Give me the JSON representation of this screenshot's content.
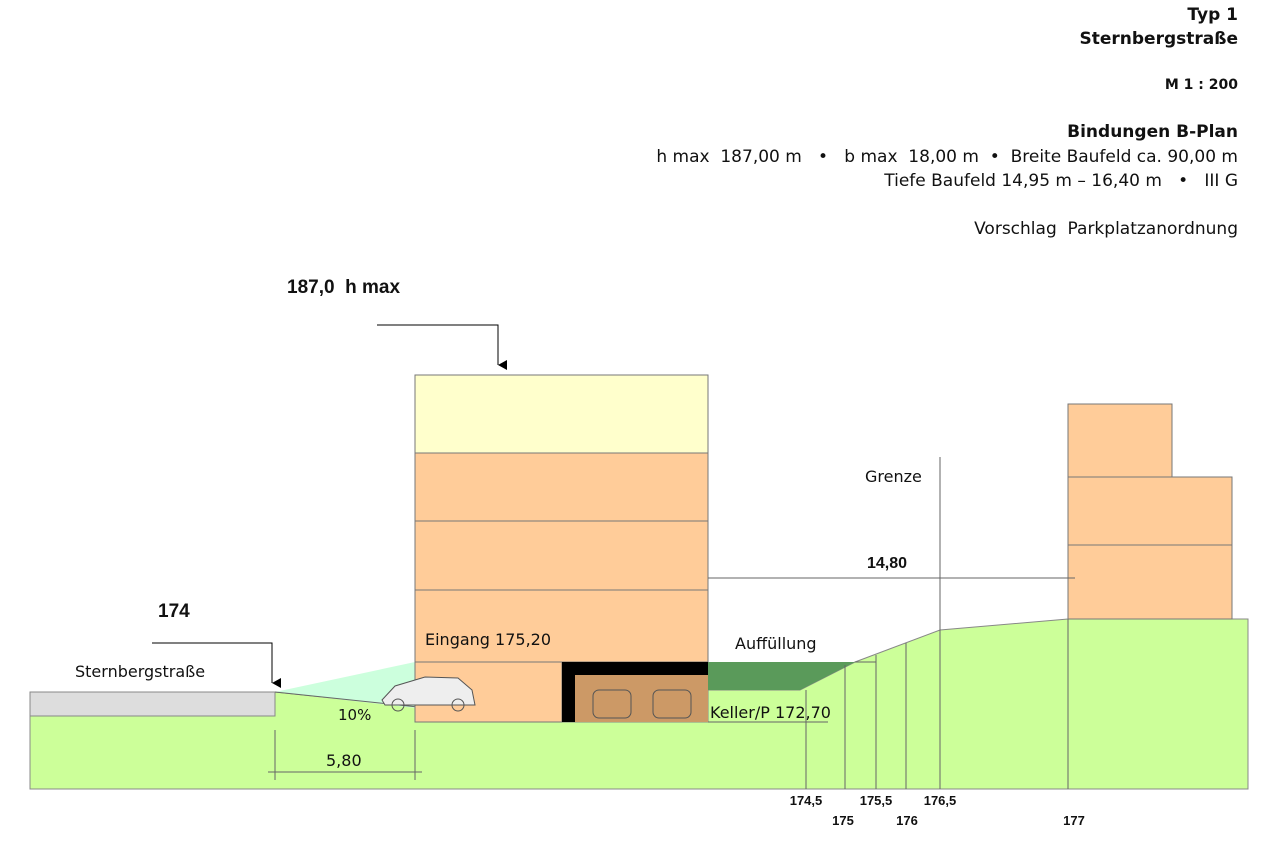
{
  "header": {
    "title": "Typ 1",
    "subtitle": "Sternbergstraße",
    "scale": "M 1 : 200",
    "bindings_title": "Bindungen B-Plan",
    "bindings_line1": "h max  187,00 m   •   b max  18,00 m  •  Breite Baufeld ca. 90,00 m",
    "bindings_line2": "Tiefe Baufeld 14,95 m – 16,40 m   •   III G",
    "proposal": "Vorschlag  Parkplatzanordnung"
  },
  "section": {
    "hmax_label": "187,0  h max",
    "street_level": "174",
    "street_name": "Sternbergstraße",
    "slope": "10%",
    "ramp_length": "5,80",
    "entrance": "Eingang 175,20",
    "fill": "Auffüllung",
    "basement": "Keller/P 172,70",
    "boundary": "Grenze",
    "distance": "14,80",
    "contours": [
      "174,5",
      "175",
      "175,5",
      "176",
      "176,5",
      "177"
    ]
  }
}
